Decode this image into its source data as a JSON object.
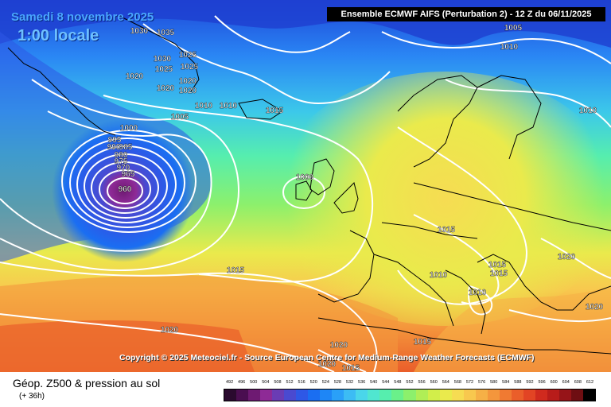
{
  "header": {
    "date": "Samedi 8 novembre 2025",
    "local_time": "1:00 locale",
    "model_info": "Ensemble ECMWF AIFS  (Perturbation 2)  -  12 Z du 06/11/2025"
  },
  "map": {
    "pressure_labels": [
      {
        "text": "1030"
      },
      {
        "text": "1035"
      },
      {
        "text": "1005"
      },
      {
        "text": "1010"
      },
      {
        "text": "1030"
      },
      {
        "text": "1025"
      },
      {
        "text": "1025"
      },
      {
        "text": "1025"
      },
      {
        "text": "1020"
      },
      {
        "text": "1020"
      },
      {
        "text": "1020"
      },
      {
        "text": "1020"
      },
      {
        "text": "1010"
      },
      {
        "text": "1010"
      },
      {
        "text": "1015"
      },
      {
        "text": "1005"
      },
      {
        "text": "1010"
      },
      {
        "text": "1000"
      },
      {
        "text": "995"
      },
      {
        "text": "990"
      },
      {
        "text": "985"
      },
      {
        "text": "980"
      },
      {
        "text": "975"
      },
      {
        "text": "970"
      },
      {
        "text": "965"
      },
      {
        "text": "960"
      },
      {
        "text": "1000"
      },
      {
        "text": "1015"
      },
      {
        "text": "1015"
      },
      {
        "text": "1010"
      },
      {
        "text": "1015"
      },
      {
        "text": "1020"
      },
      {
        "text": "1010"
      },
      {
        "text": "1015"
      },
      {
        "text": "1020"
      },
      {
        "text": "1020"
      },
      {
        "text": "1020"
      },
      {
        "text": "1015"
      },
      {
        "text": "1020"
      },
      {
        "text": "1015"
      }
    ]
  },
  "copyright": "Copyright © 2025 Meteociel.fr - Source European Centre for Medium-Range Weather Forecasts (ECMWF)",
  "legend": {
    "title": "Géop. Z500 & pression au sol",
    "subtitle": "(+ 36h)",
    "values": [
      "492",
      "496",
      "500",
      "504",
      "508",
      "512",
      "516",
      "520",
      "524",
      "528",
      "532",
      "536",
      "540",
      "544",
      "548",
      "552",
      "556",
      "560",
      "564",
      "568",
      "572",
      "576",
      "580",
      "584",
      "588",
      "592",
      "596",
      "600",
      "604",
      "608",
      "612"
    ],
    "colors": [
      "#2a0a2e",
      "#4a0e50",
      "#6e1a72",
      "#8e2a96",
      "#6a3cb4",
      "#4a4ad0",
      "#2e58e6",
      "#1a6ef2",
      "#1e86f6",
      "#2aa0f8",
      "#3cbcf4",
      "#4ad6ea",
      "#50e6d0",
      "#56eeae",
      "#6af08a",
      "#8cf06c",
      "#b0ee56",
      "#d2ee4a",
      "#eaea4c",
      "#f6dc52",
      "#f8c84e",
      "#f6b046",
      "#f4963c",
      "#f07a32",
      "#ea5e2a",
      "#e24424",
      "#d02a1e",
      "#b81c1a",
      "#961418",
      "#6e0e12",
      "#000000"
    ]
  }
}
